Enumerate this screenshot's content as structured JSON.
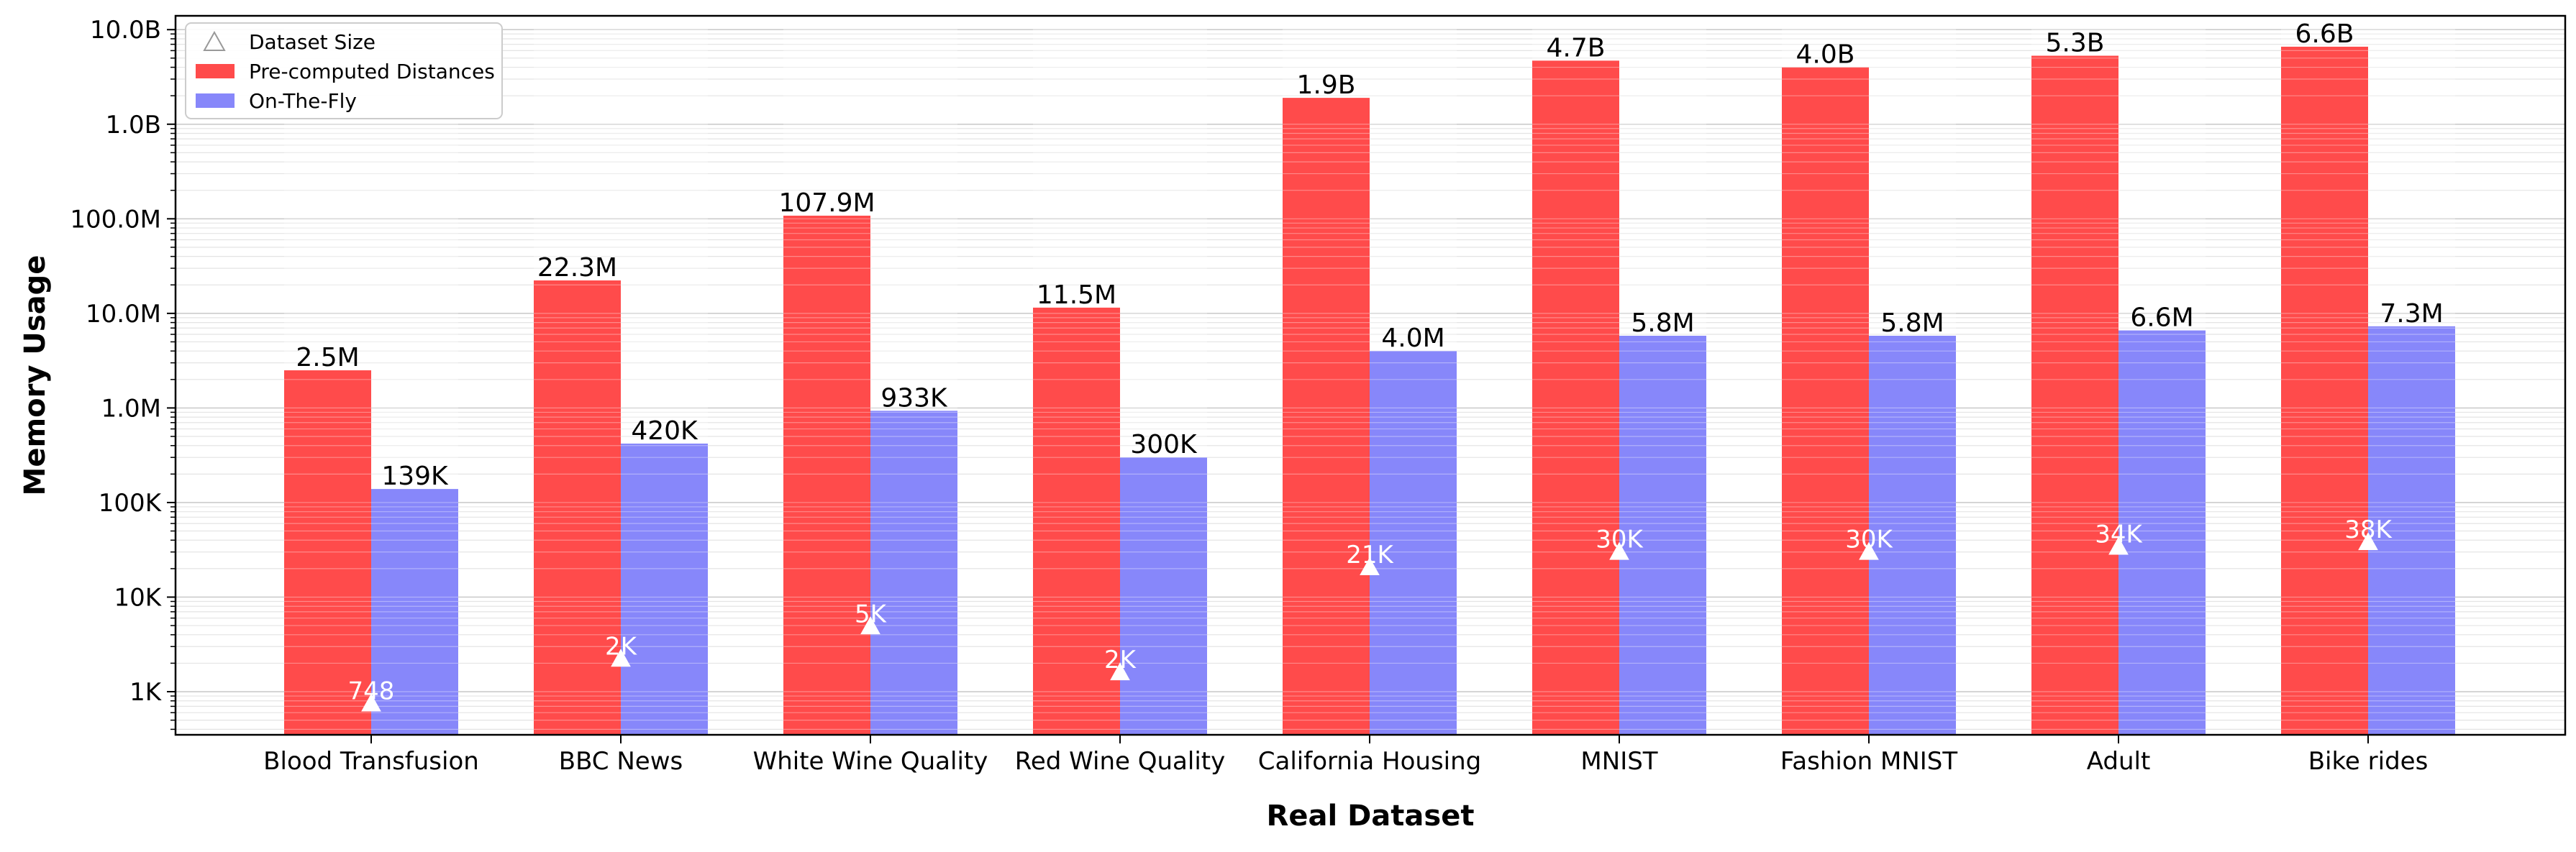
{
  "chart_data": {
    "type": "bar",
    "yscale": "log",
    "ylim": [
      350,
      14000000000
    ],
    "grid": "y-major-and-minor",
    "legend_position": "top-left",
    "xlabel": "Real Dataset",
    "ylabel": "Memory Usage",
    "categories": [
      "Blood Transfusion",
      "BBC News",
      "White Wine Quality",
      "Red Wine Quality",
      "California Housing",
      "MNIST",
      "Fashion MNIST",
      "Adult",
      "Bike rides"
    ],
    "y_ticks": [
      {
        "value": 1000,
        "label": "1K"
      },
      {
        "value": 10000,
        "label": "10K"
      },
      {
        "value": 100000,
        "label": "100K"
      },
      {
        "value": 1000000,
        "label": "1.0M"
      },
      {
        "value": 10000000,
        "label": "10.0M"
      },
      {
        "value": 100000000,
        "label": "100.0M"
      },
      {
        "value": 1000000000,
        "label": "1.0B"
      },
      {
        "value": 10000000000,
        "label": "10.0B"
      }
    ],
    "series": [
      {
        "name": "Pre-computed Distances",
        "color": "#ff4b4b",
        "values": [
          2500000,
          22300000,
          107900000,
          11500000,
          1900000000,
          4700000000,
          4000000000,
          5300000000,
          6600000000
        ],
        "labels": [
          "2.5M",
          "22.3M",
          "107.9M",
          "11.5M",
          "1.9B",
          "4.7B",
          "4.0B",
          "5.3B",
          "6.6B"
        ]
      },
      {
        "name": "On-The-Fly",
        "color": "#8787fa",
        "values": [
          139000,
          420000,
          933000,
          300000,
          4000000,
          5800000,
          5800000,
          6600000,
          7300000
        ],
        "labels": [
          "139K",
          "420K",
          "933K",
          "300K",
          "4.0M",
          "5.8M",
          "5.8M",
          "6.6M",
          "7.3M"
        ]
      }
    ],
    "dataset_size": {
      "name": "Dataset Size",
      "marker": "triangle",
      "values": [
        748,
        2225,
        4898,
        1599,
        20640,
        30000,
        30000,
        34000,
        38000
      ],
      "labels": [
        "748",
        "2K",
        "5K",
        "2K",
        "21K",
        "30K",
        "30K",
        "34K",
        "38K"
      ]
    },
    "legend": [
      {
        "label": "Dataset Size",
        "marker": "triangle"
      },
      {
        "label": "Pre-computed Distances",
        "color": "#ff4b4b"
      },
      {
        "label": "On-The-Fly",
        "color": "#8787fa"
      }
    ]
  }
}
